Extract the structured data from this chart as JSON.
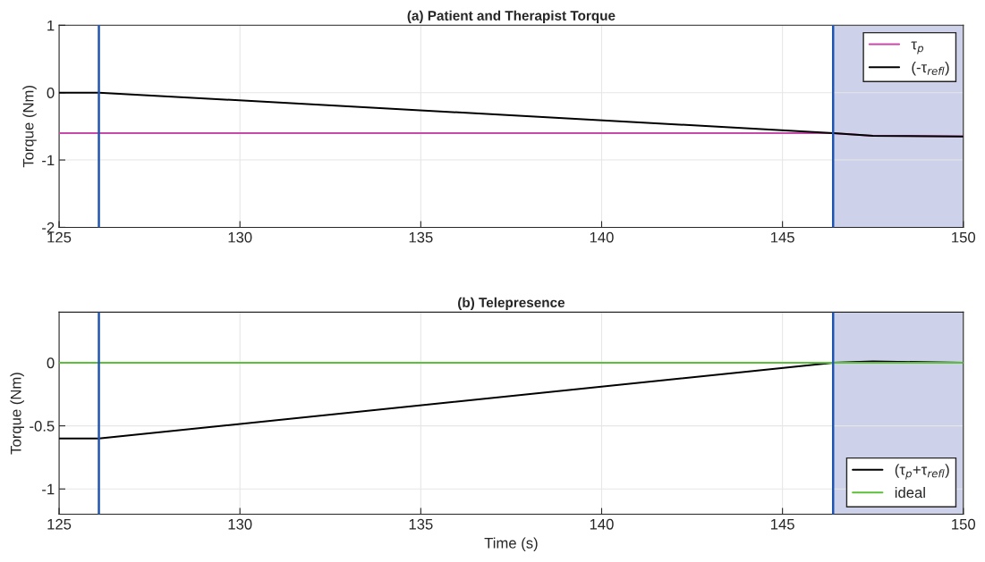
{
  "chart_data": [
    {
      "type": "line",
      "title": "(a) Patient and Therapist Torque",
      "ylabel": "Torque (Nm)",
      "x": [
        125,
        126.1,
        146.4,
        147.5,
        150
      ],
      "series": [
        {
          "name": "τ$_{p}$",
          "color": "#c84aa8",
          "values": [
            -0.6,
            -0.6,
            -0.6,
            -0.64,
            -0.65
          ]
        },
        {
          "name": "(-τ$_{refl}$)",
          "color": "#000000",
          "values": [
            0,
            0,
            -0.6,
            -0.64,
            -0.65
          ]
        }
      ],
      "xlim": [
        125,
        150
      ],
      "xticks": [
        125,
        130,
        135,
        140,
        145,
        150
      ],
      "ylim": [
        -2,
        1
      ],
      "yticks": [
        -2,
        -1,
        0,
        1
      ],
      "ref_lines": [
        {
          "axis": "x",
          "value": 126.1,
          "color": "#1f55b0"
        },
        {
          "axis": "x",
          "value": 146.4,
          "color": "#1f55b0"
        }
      ],
      "bands": [
        {
          "axis": "x",
          "from": 146.4,
          "to": 150,
          "color": "#cdd1ea"
        }
      ],
      "grid": true,
      "legend": "top right"
    },
    {
      "type": "line",
      "title": "(b) Telepresence",
      "xlabel": "Time (s)",
      "ylabel": "Torque (Nm)",
      "x": [
        125,
        126.1,
        146.4,
        147.5,
        150
      ],
      "series": [
        {
          "name": "(τ$_{p}$+τ$_{refl}$)",
          "color": "#000000",
          "values": [
            -0.6,
            -0.6,
            0,
            0.01,
            0
          ]
        },
        {
          "name": "ideal",
          "color": "#5cbf3a",
          "values": [
            0,
            0,
            0,
            0,
            0
          ]
        }
      ],
      "xlim": [
        125,
        150
      ],
      "xticks": [
        125,
        130,
        135,
        140,
        145,
        150
      ],
      "ylim": [
        -1.2,
        0.4
      ],
      "yticks": [
        -1,
        -0.5,
        0
      ],
      "ref_lines": [
        {
          "axis": "x",
          "value": 126.1,
          "color": "#1f55b0"
        },
        {
          "axis": "x",
          "value": 146.4,
          "color": "#1f55b0"
        }
      ],
      "bands": [
        {
          "axis": "x",
          "from": 146.4,
          "to": 150,
          "color": "#cdd1ea"
        }
      ],
      "grid": true,
      "legend": "bottom right"
    }
  ]
}
